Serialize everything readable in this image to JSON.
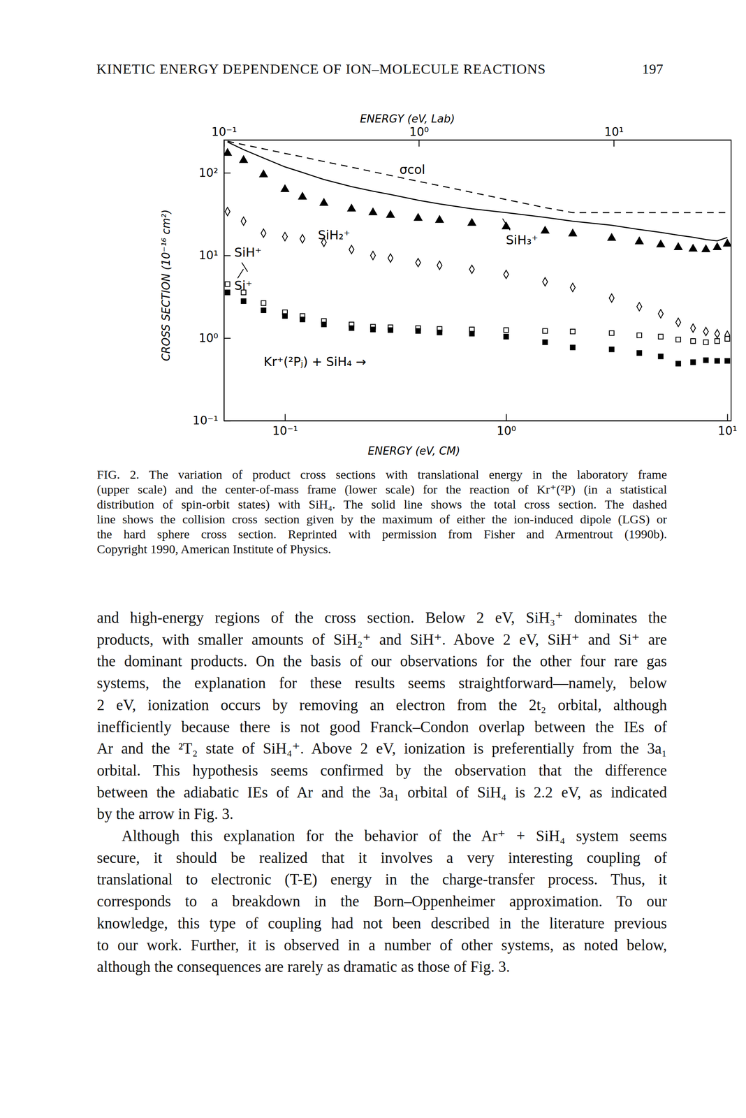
{
  "page": {
    "header": {
      "title": "KINETIC ENERGY DEPENDENCE OF ION–MOLECULE REACTIONS",
      "page_number": "197"
    },
    "caption": [
      "FIG. 2. The variation of product cross sections with translational energy in the laboratory frame",
      "(upper scale) and the center-of-mass frame (lower scale) for the reaction of Kr⁺(²P) (in a statistical",
      "distribution of spin-orbit states) with SiH₄. The solid line shows the total cross section. The dashed",
      "line shows the collision cross section given by the maximum of either the ion-induced dipole (LGS) or",
      "the hard sphere cross section. Reprinted with permission from Fisher and Armentrout (1990b).",
      "Copyright 1990, American Institute of Physics."
    ],
    "body": [
      [
        "and high-energy regions of the cross section. Below 2 eV, SiH₃⁺ dominates the",
        "products, with smaller amounts of SiH₂⁺ and SiH⁺. Above 2 eV, SiH⁺ and Si⁺ are",
        "the dominant products. On the basis of our observations for the other four rare gas",
        "systems, the explanation for these results seems straightforward—namely, below",
        "2 eV, ionization occurs by removing an electron from the 2t₂ orbital, although",
        "inefficiently because there is not good Franck–Condon overlap between the IEs of",
        "Ar and the ²T₂ state of SiH₄⁺. Above 2 eV, ionization is preferentially from the 3a₁",
        "orbital. This hypothesis seems confirmed by the observation that the difference",
        "between the adiabatic IEs of Ar and the 3a₁ orbital of SiH₄ is 2.2 eV, as indicated",
        "by the arrow in Fig. 3."
      ],
      [
        "Although this explanation for the behavior of the Ar⁺ + SiH₄ system seems",
        "secure, it should be realized that it involves a very interesting coupling of",
        "translational to electronic (T-E) energy in the charge-transfer process. Thus, it",
        "corresponds to a breakdown in the Born–Oppenheimer approximation. To our",
        "knowledge, this type of coupling had not been described in the literature previous",
        "to our work. Further, it is observed in a number of other systems, as noted below,",
        "although the consequences are rarely as dramatic as those of Fig. 3."
      ]
    ]
  },
  "chart_data": {
    "type": "scatter",
    "x_label": "ENERGY (eV, CM)",
    "x2_label": "ENERGY (eV, Lab)",
    "y_label": "CROSS SECTION (10⁻¹⁶ cm²)",
    "log": true,
    "xlim": [
      0.053,
      10.4
    ],
    "xticks": [
      {
        "value": 0.1,
        "label": "10⁻¹"
      },
      {
        "value": 1,
        "label": "10⁰"
      },
      {
        "value": 10,
        "label": "10¹"
      }
    ],
    "x2lim": [
      0.1,
      40
    ],
    "x2ticks": [
      {
        "value": 0.1,
        "label": "10⁻¹"
      },
      {
        "value": 1,
        "label": "10⁰"
      },
      {
        "value": 10,
        "label": "10¹"
      }
    ],
    "ylim": [
      0.1,
      250
    ],
    "yticks": [
      {
        "value": 0.1,
        "label": "10⁻¹"
      },
      {
        "value": 1,
        "label": "10⁰"
      },
      {
        "value": 10,
        "label": "10¹"
      },
      {
        "value": 100,
        "label": "10²"
      }
    ],
    "x": [
      0.055,
      0.065,
      0.08,
      0.1,
      0.12,
      0.15,
      0.2,
      0.25,
      0.3,
      0.4,
      0.5,
      0.7,
      1,
      1.5,
      2,
      3,
      4,
      5,
      6,
      7,
      8,
      9,
      10
    ],
    "series": [
      {
        "type": "line",
        "line_style": "solid",
        "color": "#000000",
        "values": [
          236,
          191,
          151,
          118,
          101,
          83,
          68,
          60,
          54.6,
          46.6,
          42,
          36.7,
          33,
          28.9,
          26,
          23.2,
          20.6,
          19,
          17.6,
          16.6,
          15.6,
          15,
          16.5
        ]
      },
      {
        "name": "σcol",
        "type": "line",
        "line_style": "dashed",
        "color": "#000000",
        "values": [
          241,
          219,
          195,
          172,
          156,
          137,
          117,
          103,
          93,
          79,
          70,
          58,
          47.5,
          37.9,
          33,
          33,
          33,
          33,
          33,
          33,
          33,
          33,
          33
        ]
      },
      {
        "name": "SiH₃⁺",
        "type": "scatter",
        "marker": "filled-triangle",
        "color": "#000000",
        "values": [
          173,
          142,
          95,
          63,
          51,
          43,
          36.6,
          33,
          30.7,
          28.3,
          26.7,
          24.6,
          22.3,
          19.8,
          18.3,
          16.2,
          14.7,
          13.5,
          12.5,
          12.0,
          11.8,
          12.5,
          13.8
        ]
      },
      {
        "name": "SiH₂⁺",
        "type": "scatter",
        "marker": "open-diamond",
        "color": "#000000",
        "values": [
          34,
          26,
          18.6,
          16.9,
          15.9,
          14.4,
          11.8,
          10,
          9.3,
          8.2,
          7.6,
          6.8,
          5.9,
          4.8,
          4.1,
          3.05,
          2.4,
          1.97,
          1.55,
          1.32,
          1.2,
          1.13,
          1.08
        ]
      },
      {
        "name": "SiH⁺",
        "type": "scatter",
        "marker": "open-square",
        "color": "#000000",
        "values": [
          4.5,
          3.57,
          2.65,
          2.05,
          1.85,
          1.61,
          1.46,
          1.37,
          1.35,
          1.32,
          1.29,
          1.27,
          1.25,
          1.22,
          1.2,
          1.15,
          1.08,
          1.04,
          0.96,
          0.92,
          0.89,
          0.92,
          0.98
        ]
      },
      {
        "name": "Si⁺",
        "type": "scatter",
        "marker": "filled-square",
        "color": "#000000",
        "values": [
          3.57,
          2.8,
          2.17,
          1.85,
          1.68,
          1.46,
          1.32,
          1.27,
          1.25,
          1.22,
          1.17,
          1.13,
          1.04,
          0.89,
          0.77,
          0.73,
          0.66,
          0.6,
          0.49,
          0.51,
          0.54,
          0.53,
          0.53
        ]
      }
    ],
    "annotations": [
      {
        "text": "Kr⁺(²Pⱼ) + SiH₄ →"
      }
    ]
  }
}
